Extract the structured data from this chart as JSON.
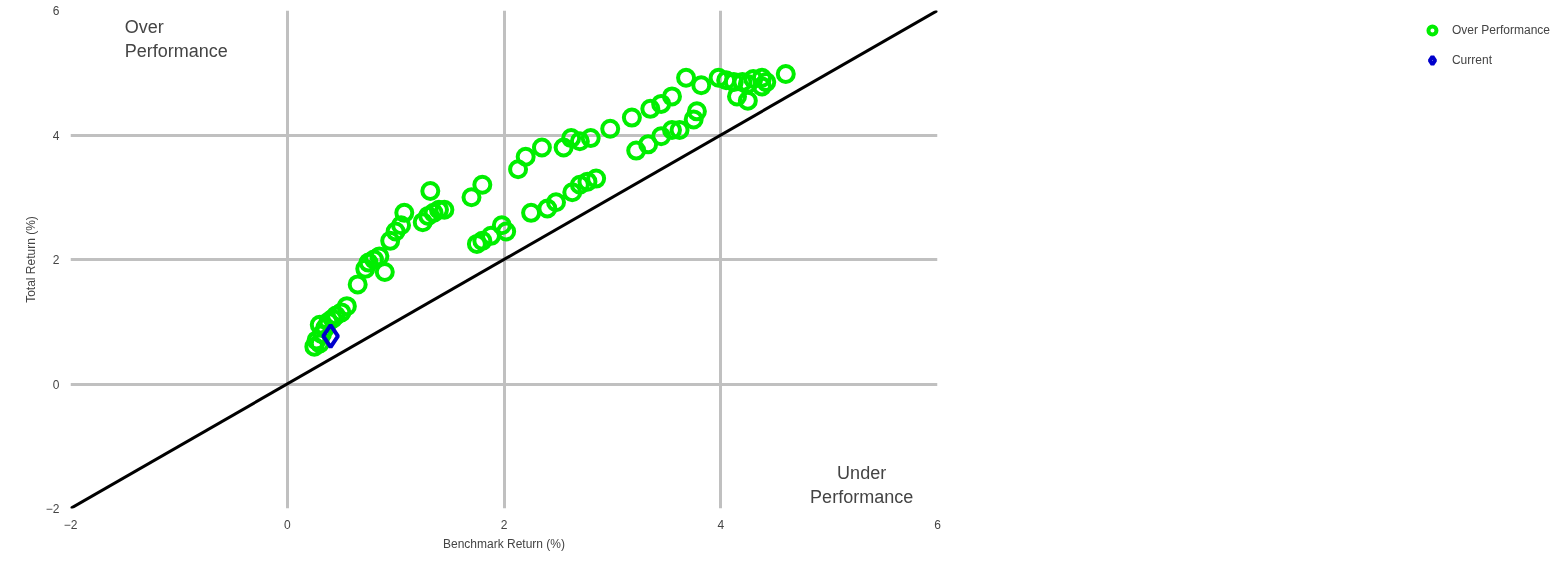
{
  "chart_data": {
    "type": "scatter",
    "xlabel": "Benchmark Return (%)",
    "ylabel": "Total Return (%)",
    "xlim": [
      -2,
      6
    ],
    "ylim": [
      -2,
      6
    ],
    "xticks": [
      -2,
      0,
      2,
      4,
      6
    ],
    "yticks": [
      -2,
      0,
      2,
      4,
      6
    ],
    "grid": true,
    "legend": "right",
    "annotations": [
      "Over\nPerformance",
      "Under\nPerformance"
    ],
    "series": [
      {
        "type": "line",
        "color": "#000000",
        "marker": "none",
        "x": [
          -2,
          6
        ],
        "values": [
          -2,
          6
        ]
      },
      {
        "name": "Over Performance",
        "color": "#00ee00",
        "marker": "circle",
        "x": [
          0.25,
          0.27,
          0.3,
          0.32,
          0.35,
          0.38,
          0.42,
          0.45,
          0.5,
          0.55,
          0.3,
          0.65,
          0.72,
          0.75,
          0.8,
          0.9,
          0.85,
          0.95,
          1.0,
          1.05,
          1.08,
          1.25,
          1.3,
          1.35,
          1.4,
          1.45,
          1.32,
          1.7,
          1.8,
          2.13,
          2.2,
          2.35,
          2.55,
          2.62,
          2.7,
          2.8,
          2.98,
          3.18,
          3.35,
          3.45,
          3.55,
          3.68,
          3.82,
          3.98,
          4.05,
          4.12,
          4.2,
          4.25,
          4.3,
          4.38,
          4.42,
          4.15,
          4.25,
          4.38,
          4.6,
          1.75,
          1.8,
          1.88,
          1.98,
          2.02,
          2.25,
          2.4,
          2.48,
          2.63,
          2.7,
          2.77,
          2.85,
          3.22,
          3.33,
          3.45,
          3.55,
          3.62,
          3.75,
          3.78
        ],
        "values": [
          0.6,
          0.7,
          0.65,
          0.8,
          0.9,
          1.0,
          1.05,
          1.1,
          1.15,
          1.25,
          0.95,
          1.6,
          1.85,
          1.95,
          2.0,
          1.8,
          2.05,
          2.3,
          2.45,
          2.55,
          2.75,
          2.6,
          2.7,
          2.75,
          2.8,
          2.8,
          3.1,
          3.0,
          3.2,
          3.45,
          3.65,
          3.8,
          3.8,
          3.95,
          3.9,
          3.95,
          4.1,
          4.28,
          4.42,
          4.5,
          4.62,
          4.92,
          4.8,
          4.92,
          4.88,
          4.85,
          4.85,
          4.82,
          4.9,
          4.92,
          4.85,
          4.62,
          4.55,
          4.78,
          4.98,
          2.25,
          2.3,
          2.38,
          2.55,
          2.45,
          2.75,
          2.82,
          2.92,
          3.08,
          3.2,
          3.25,
          3.3,
          3.75,
          3.85,
          3.98,
          4.08,
          4.08,
          4.25,
          4.38
        ]
      },
      {
        "name": "Current",
        "color": "#0000cc",
        "marker": "diamond",
        "x": [
          0.4
        ],
        "values": [
          0.77
        ]
      }
    ]
  }
}
